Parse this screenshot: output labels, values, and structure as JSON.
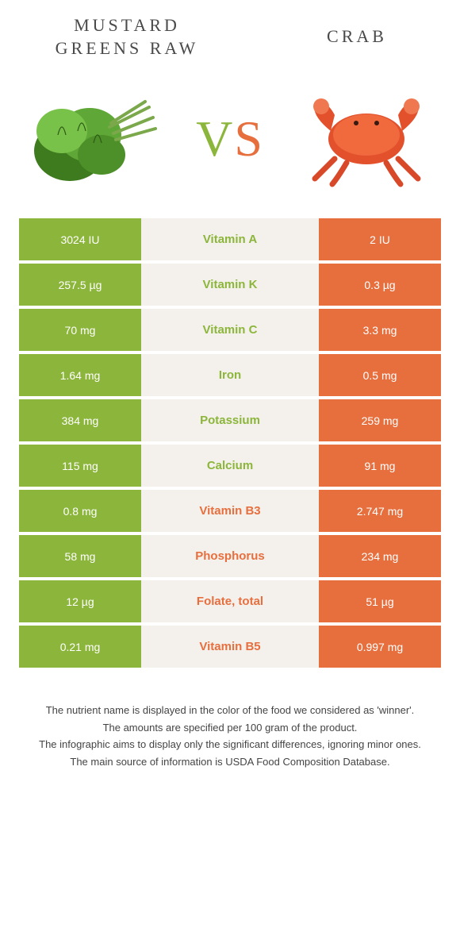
{
  "foods": {
    "left": {
      "title": "MUSTARD\nGREENS RAW",
      "color": "#8cb63b"
    },
    "right": {
      "title": "CRAB",
      "color": "#e76f3e"
    }
  },
  "vs_label": {
    "v": "V",
    "s": "S"
  },
  "table": {
    "mid_bg": "#f4f0ec",
    "rows": [
      {
        "left": "3024 IU",
        "label": "Vitamin A",
        "right": "2 IU",
        "winner": "left"
      },
      {
        "left": "257.5 µg",
        "label": "Vitamin K",
        "right": "0.3 µg",
        "winner": "left"
      },
      {
        "left": "70 mg",
        "label": "Vitamin C",
        "right": "3.3 mg",
        "winner": "left"
      },
      {
        "left": "1.64 mg",
        "label": "Iron",
        "right": "0.5 mg",
        "winner": "left"
      },
      {
        "left": "384 mg",
        "label": "Potassium",
        "right": "259 mg",
        "winner": "left"
      },
      {
        "left": "115 mg",
        "label": "Calcium",
        "right": "91 mg",
        "winner": "left"
      },
      {
        "left": "0.8 mg",
        "label": "Vitamin B3",
        "right": "2.747 mg",
        "winner": "right"
      },
      {
        "left": "58 mg",
        "label": "Phosphorus",
        "right": "234 mg",
        "winner": "right"
      },
      {
        "left": "12 µg",
        "label": "Folate, total",
        "right": "51 µg",
        "winner": "right"
      },
      {
        "left": "0.21 mg",
        "label": "Vitamin B5",
        "right": "0.997 mg",
        "winner": "right"
      }
    ]
  },
  "footnotes": [
    "The nutrient name is displayed in the color of the food we considered as 'winner'.",
    "The amounts are specified per 100 gram of the product.",
    "The infographic aims to display only the significant differences, ignoring minor ones.",
    "The main source of information is USDA Food Composition Database."
  ]
}
